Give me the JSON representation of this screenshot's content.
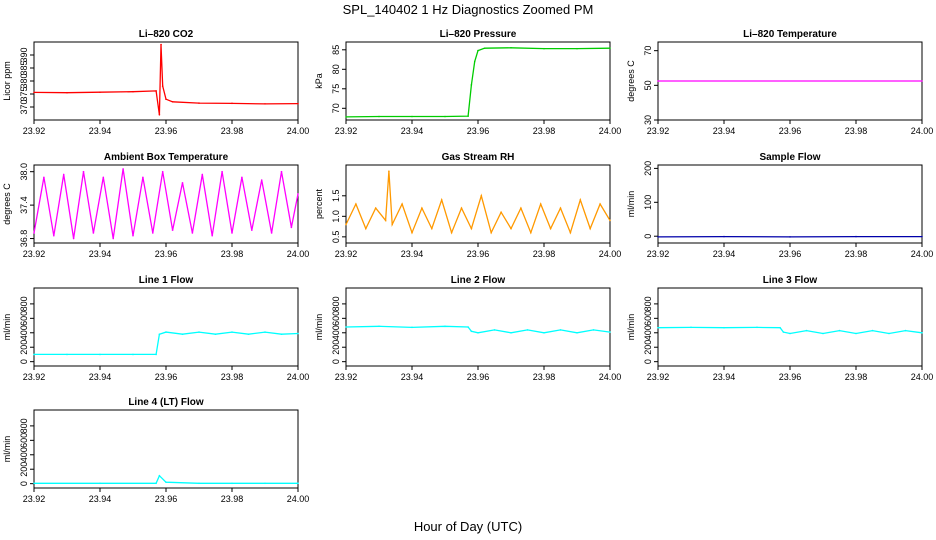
{
  "figure": {
    "title": "SPL_140402  1 Hz Diagnostics Zoomed PM",
    "xlabel": "Hour of Day (UTC)"
  },
  "chart_data": [
    {
      "type": "line",
      "title": "Li–820 CO2",
      "ylabel": "Licor ppm",
      "color": "#ff0000",
      "xlim": [
        23.92,
        24.0
      ],
      "ylim": [
        365,
        395
      ],
      "yticks": [
        "370",
        "375",
        "380",
        "385",
        "390"
      ],
      "x": [
        23.92,
        23.93,
        23.94,
        23.95,
        23.957,
        23.958,
        23.9585,
        23.959,
        23.96,
        23.962,
        23.97,
        23.98,
        23.99,
        24.0
      ],
      "y": [
        375.6,
        375.5,
        375.7,
        375.9,
        376.2,
        367,
        394,
        378,
        373,
        372,
        371.5,
        371.4,
        371.2,
        371.3
      ]
    },
    {
      "type": "line",
      "title": "Li–820 Pressure",
      "ylabel": "kPa",
      "color": "#00cc00",
      "xlim": [
        23.92,
        24.0
      ],
      "ylim": [
        67,
        87
      ],
      "yticks": [
        "70",
        "75",
        "80",
        "85"
      ],
      "x": [
        23.92,
        23.93,
        23.94,
        23.95,
        23.957,
        23.958,
        23.959,
        23.96,
        23.962,
        23.97,
        23.98,
        23.99,
        24.0
      ],
      "y": [
        67.8,
        67.9,
        67.9,
        67.9,
        68,
        76,
        82,
        84.8,
        85.4,
        85.5,
        85.3,
        85.3,
        85.4
      ]
    },
    {
      "type": "line",
      "title": "Li–820 Temperature",
      "ylabel": "degrees C",
      "color": "#ff00ff",
      "xlim": [
        23.92,
        24.0
      ],
      "ylim": [
        30,
        75
      ],
      "yticks": [
        "30",
        "50",
        "70"
      ],
      "x": [
        23.92,
        24.0
      ],
      "y": [
        52.5,
        52.5
      ]
    },
    {
      "type": "line",
      "title": "Ambient Box Temperature",
      "ylabel": "degrees C",
      "color": "#ff00ff",
      "xlim": [
        23.92,
        24.0
      ],
      "ylim": [
        36.72,
        38.12
      ],
      "yticks": [
        "36.8",
        "37.4",
        "38.0"
      ],
      "x": [
        23.92,
        23.923,
        23.926,
        23.929,
        23.932,
        23.935,
        23.938,
        23.941,
        23.944,
        23.947,
        23.95,
        23.953,
        23.956,
        23.959,
        23.962,
        23.965,
        23.968,
        23.971,
        23.974,
        23.977,
        23.98,
        23.983,
        23.986,
        23.989,
        23.992,
        23.995,
        23.998,
        24.0
      ],
      "y": [
        36.9,
        37.9,
        36.85,
        37.95,
        36.8,
        38.0,
        36.9,
        37.9,
        36.8,
        38.05,
        36.85,
        37.9,
        36.9,
        38.0,
        36.95,
        37.8,
        36.9,
        37.95,
        36.85,
        38.0,
        36.9,
        37.9,
        36.95,
        37.85,
        36.9,
        38.0,
        37.0,
        37.6
      ]
    },
    {
      "type": "line",
      "title": "Gas Stream RH",
      "ylabel": "percent",
      "color": "#ff9900",
      "xlim": [
        23.92,
        24.0
      ],
      "ylim": [
        0.35,
        2.25
      ],
      "yticks": [
        "0.5",
        "1.0",
        "1.5"
      ],
      "x": [
        23.92,
        23.923,
        23.926,
        23.929,
        23.932,
        23.933,
        23.934,
        23.937,
        23.94,
        23.943,
        23.946,
        23.949,
        23.952,
        23.955,
        23.958,
        23.961,
        23.964,
        23.967,
        23.97,
        23.973,
        23.976,
        23.979,
        23.982,
        23.985,
        23.988,
        23.991,
        23.994,
        23.997,
        24.0
      ],
      "y": [
        0.8,
        1.3,
        0.7,
        1.2,
        0.9,
        2.1,
        0.8,
        1.3,
        0.6,
        1.2,
        0.7,
        1.4,
        0.6,
        1.2,
        0.7,
        1.5,
        0.6,
        1.1,
        0.7,
        1.2,
        0.6,
        1.3,
        0.7,
        1.2,
        0.6,
        1.4,
        0.7,
        1.3,
        0.9
      ]
    },
    {
      "type": "line",
      "title": "Sample Flow",
      "ylabel": "ml/min",
      "color": "#0000aa",
      "xlim": [
        23.92,
        24.0
      ],
      "ylim": [
        -20,
        210
      ],
      "yticks": [
        "0",
        "100",
        "200"
      ],
      "x": [
        23.92,
        23.94,
        23.96,
        23.98,
        24.0
      ],
      "y": [
        -2,
        -1,
        -2,
        -1,
        -1
      ]
    },
    {
      "type": "line",
      "title": "Line 1 Flow",
      "ylabel": "ml/min",
      "color": "#00ffff",
      "xlim": [
        23.92,
        24.0
      ],
      "ylim": [
        -60,
        1020
      ],
      "yticks": [
        "0",
        "200",
        "400",
        "600",
        "800"
      ],
      "x": [
        23.92,
        23.93,
        23.94,
        23.95,
        23.957,
        23.958,
        23.96,
        23.965,
        23.97,
        23.975,
        23.98,
        23.985,
        23.99,
        23.995,
        24.0
      ],
      "y": [
        100,
        100,
        100,
        100,
        100,
        380,
        410,
        380,
        410,
        380,
        410,
        380,
        410,
        380,
        390
      ]
    },
    {
      "type": "line",
      "title": "Line 2 Flow",
      "ylabel": "ml/min",
      "color": "#00ffff",
      "xlim": [
        23.92,
        24.0
      ],
      "ylim": [
        -60,
        1020
      ],
      "yticks": [
        "0",
        "200",
        "400",
        "600",
        "800"
      ],
      "x": [
        23.92,
        23.93,
        23.94,
        23.95,
        23.957,
        23.958,
        23.96,
        23.965,
        23.97,
        23.975,
        23.98,
        23.985,
        23.99,
        23.995,
        24.0
      ],
      "y": [
        480,
        490,
        475,
        490,
        480,
        420,
        400,
        440,
        400,
        440,
        400,
        440,
        400,
        440,
        410
      ]
    },
    {
      "type": "line",
      "title": "Line 3 Flow",
      "ylabel": "ml/min",
      "color": "#00ffff",
      "xlim": [
        23.92,
        24.0
      ],
      "ylim": [
        -60,
        1020
      ],
      "yticks": [
        "0",
        "200",
        "400",
        "600",
        "800"
      ],
      "x": [
        23.92,
        23.93,
        23.94,
        23.95,
        23.957,
        23.958,
        23.96,
        23.965,
        23.97,
        23.975,
        23.98,
        23.985,
        23.99,
        23.995,
        24.0
      ],
      "y": [
        470,
        475,
        470,
        475,
        470,
        410,
        390,
        430,
        390,
        430,
        390,
        430,
        390,
        430,
        400
      ]
    },
    {
      "type": "line",
      "title": "Line 4 (LT) Flow",
      "ylabel": "ml/min",
      "color": "#00ffff",
      "xlim": [
        23.92,
        24.0
      ],
      "ylim": [
        -60,
        1020
      ],
      "yticks": [
        "0",
        "200",
        "400",
        "600",
        "800"
      ],
      "x": [
        23.92,
        23.94,
        23.957,
        23.958,
        23.96,
        23.97,
        23.98,
        23.99,
        24.0
      ],
      "y": [
        5,
        5,
        5,
        110,
        20,
        5,
        5,
        5,
        5
      ]
    }
  ],
  "xticks": [
    "23.92",
    "23.94",
    "23.96",
    "23.98",
    "24.00"
  ],
  "xtick_values": [
    23.92,
    23.94,
    23.96,
    23.98,
    24.0
  ]
}
